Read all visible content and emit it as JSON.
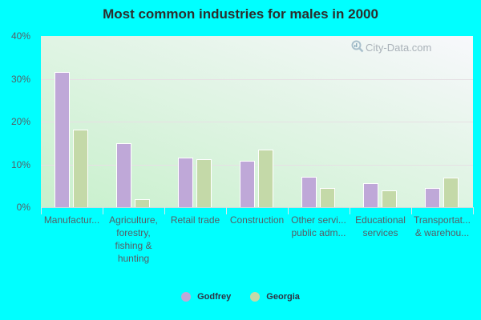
{
  "title": "Most common industries for males in 2000",
  "watermark": "City-Data.com",
  "colors": {
    "background": "#00ffff",
    "godfrey": "#bfa8d8",
    "georgia": "#c4d9a8"
  },
  "legend": [
    {
      "label": "Godfrey",
      "color": "#bfa8d8"
    },
    {
      "label": "Georgia",
      "color": "#c4d9a8"
    }
  ],
  "y_ticks": [
    "0%",
    "10%",
    "20%",
    "30%",
    "40%"
  ],
  "x_labels": [
    "Manufactur...",
    "Agriculture,\nforestry,\nfishing &\nhunting",
    "Retail trade",
    "Construction",
    "Other servi...\npublic adm...",
    "Educational\nservices",
    "Transportat...\n& warehou..."
  ],
  "chart_data": {
    "type": "bar",
    "title": "Most common industries for males in 2000",
    "xlabel": "",
    "ylabel": "",
    "ylim": [
      0,
      40
    ],
    "y_tick_format": "percent",
    "grid": true,
    "legend_position": "bottom",
    "categories": [
      "Manufacturing",
      "Agriculture, forestry, fishing & hunting",
      "Retail trade",
      "Construction",
      "Other services, except public administration",
      "Educational services",
      "Transportation & warehousing"
    ],
    "series": [
      {
        "name": "Godfrey",
        "color": "#bfa8d8",
        "values": [
          31.6,
          15.0,
          11.6,
          10.9,
          7.1,
          5.6,
          4.5
        ]
      },
      {
        "name": "Georgia",
        "color": "#c4d9a8",
        "values": [
          18.2,
          1.8,
          11.3,
          13.5,
          4.5,
          3.9,
          6.9
        ]
      }
    ]
  }
}
